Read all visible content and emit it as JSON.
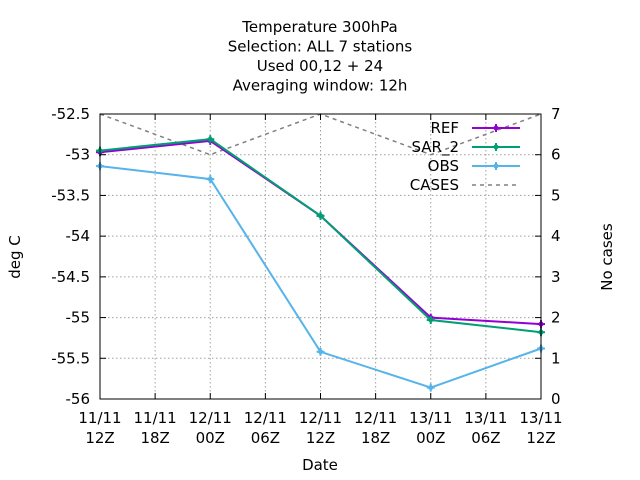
{
  "chart_data": {
    "type": "line",
    "title_lines": [
      "Temperature 300hPa",
      "Selection: ALL      7 stations",
      "Used  00,12  + 24",
      "Averaging window: 12h"
    ],
    "xlabel": "Date",
    "ylabel": "deg C",
    "y2label": "No cases",
    "x_categories": [
      [
        "11/11",
        "12Z"
      ],
      [
        "11/11",
        "18Z"
      ],
      [
        "12/11",
        "00Z"
      ],
      [
        "12/11",
        "06Z"
      ],
      [
        "12/11",
        "12Z"
      ],
      [
        "12/11",
        "18Z"
      ],
      [
        "13/11",
        "00Z"
      ],
      [
        "13/11",
        "06Z"
      ],
      [
        "13/11",
        "12Z"
      ]
    ],
    "ylim": [
      -56,
      -52.5
    ],
    "yticks": [
      "-52.5",
      "-53",
      "-53.5",
      "-54",
      "-54.5",
      "-55",
      "-55.5",
      "-56"
    ],
    "y2lim": [
      0,
      7
    ],
    "y2ticks": [
      "0",
      "1",
      "2",
      "3",
      "4",
      "5",
      "6",
      "7"
    ],
    "grid": true,
    "legend_position": "top-right",
    "series": [
      {
        "name": "REF",
        "color": "#9400d3",
        "axis": "y1",
        "style": "solid",
        "marker": "plus",
        "points": [
          [
            0,
            -52.97
          ],
          [
            2,
            -52.83
          ],
          [
            4,
            -53.75
          ],
          [
            6,
            -55.0
          ],
          [
            8,
            -55.08
          ]
        ]
      },
      {
        "name": "SAR_2",
        "color": "#009e73",
        "axis": "y1",
        "style": "solid",
        "marker": "plus",
        "points": [
          [
            0,
            -52.95
          ],
          [
            2,
            -52.81
          ],
          [
            4,
            -53.75
          ],
          [
            6,
            -55.03
          ],
          [
            8,
            -55.18
          ]
        ]
      },
      {
        "name": "OBS",
        "color": "#56b4e9",
        "axis": "y1",
        "style": "solid",
        "marker": "plus",
        "points": [
          [
            0,
            -53.14
          ],
          [
            2,
            -53.3
          ],
          [
            4,
            -55.42
          ],
          [
            6,
            -55.86
          ],
          [
            8,
            -55.38
          ]
        ]
      },
      {
        "name": "CASES",
        "color": "#808080",
        "axis": "y2",
        "style": "dashed",
        "marker": "none",
        "points": [
          [
            0,
            7
          ],
          [
            2,
            6
          ],
          [
            4,
            7
          ],
          [
            6,
            6
          ],
          [
            8,
            7
          ]
        ]
      }
    ]
  }
}
